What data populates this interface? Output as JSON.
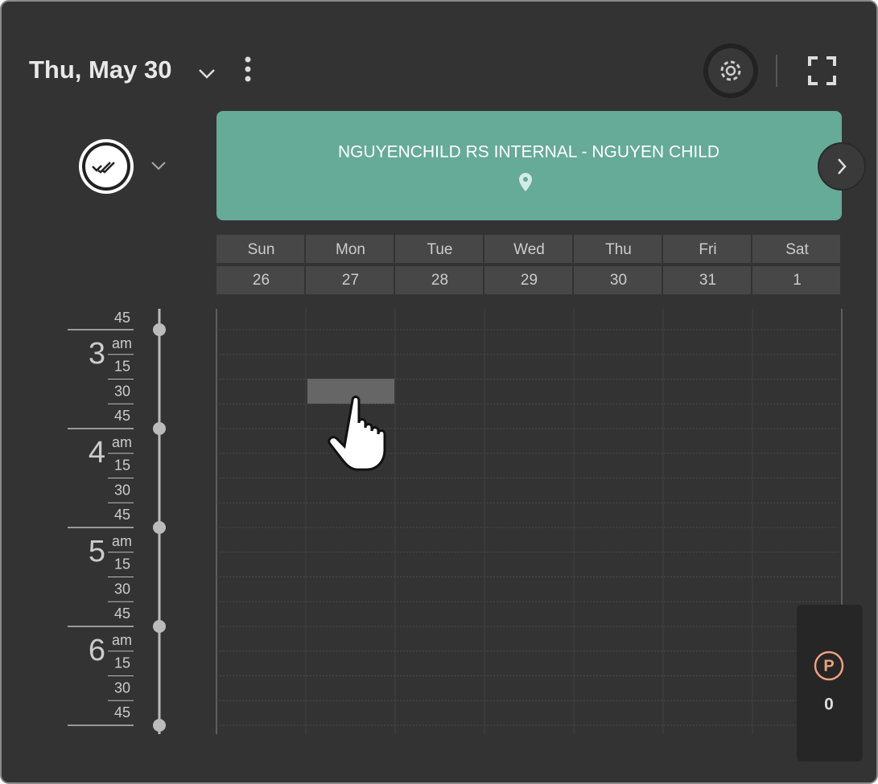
{
  "header": {
    "title": "Thu, May 30"
  },
  "banner": {
    "title": "NGUYENCHILD RS INTERNAL - NGUYEN CHILD"
  },
  "week": {
    "days": [
      "Sun",
      "Mon",
      "Tue",
      "Wed",
      "Thu",
      "Fri",
      "Sat"
    ],
    "dates": [
      26,
      27,
      28,
      29,
      30,
      31,
      1
    ]
  },
  "timeline": {
    "first_minute": "45",
    "hours": [
      {
        "hour": "3",
        "period": "am",
        "minutes": [
          "15",
          "30",
          "45"
        ]
      },
      {
        "hour": "4",
        "period": "am",
        "minutes": [
          "15",
          "30",
          "45"
        ]
      },
      {
        "hour": "5",
        "period": "am",
        "minutes": [
          "15",
          "30",
          "45"
        ]
      },
      {
        "hour": "6",
        "period": "am",
        "minutes": [
          "15",
          "30",
          "45"
        ]
      }
    ]
  },
  "badge": {
    "icon": "P",
    "count": 0
  }
}
